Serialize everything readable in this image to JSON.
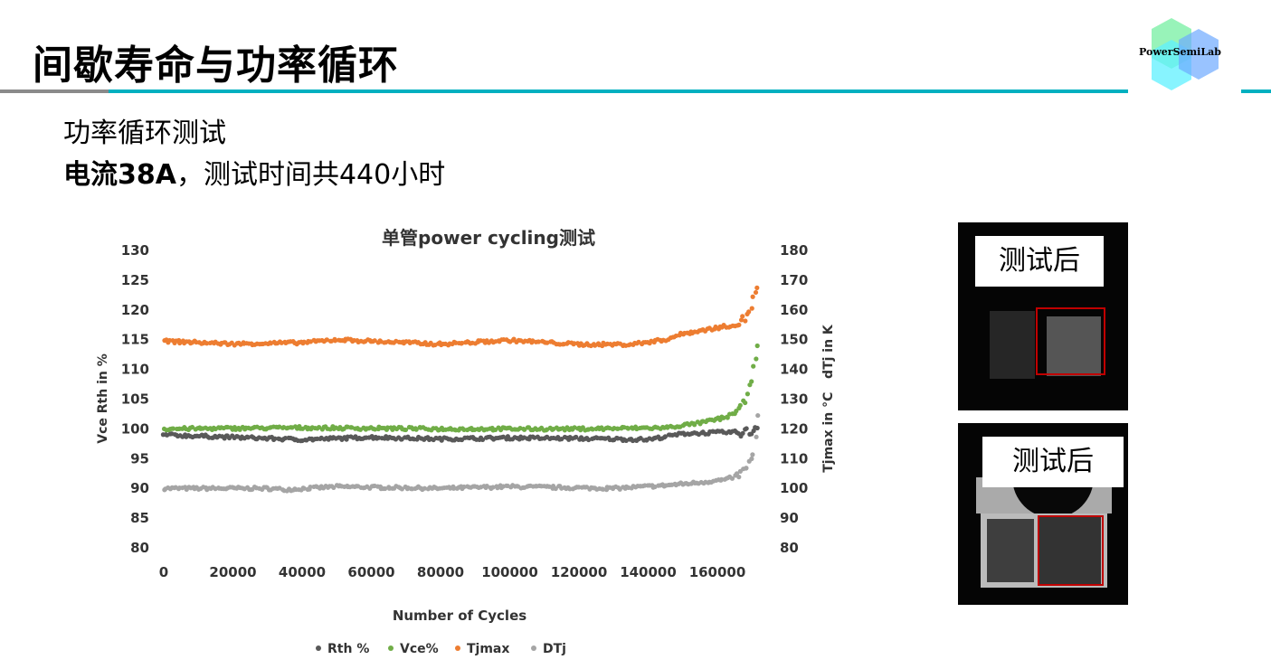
{
  "header": {
    "title": "间歇寿命与功率循环",
    "logo_text": "PowerSemiLab"
  },
  "body": {
    "line1": "功率循环测试",
    "line2_bold": "电流38A",
    "line2_rest": "，测试时间共440小时"
  },
  "photos": [
    {
      "label": "测试后"
    },
    {
      "label": "测试后"
    }
  ],
  "colors": {
    "accent": "#00b0c0",
    "Rth": "#595959",
    "Vce": "#70ad47",
    "Tjmax": "#ed7d31",
    "DTj": "#a5a5a5",
    "box": "#c00000"
  },
  "chart_data": {
    "type": "scatter",
    "title": "单管power cycling测试",
    "xlabel": "Number of Cycles",
    "ylabel_left": "Vce Rth in %",
    "ylabel_right": "Tjmax in °C   dTj in K",
    "xlim": [
      0,
      172000
    ],
    "ylim_left": [
      80,
      130
    ],
    "ylim_right": [
      80,
      180
    ],
    "x_ticks": [
      "0",
      "20000",
      "40000",
      "60000",
      "80000",
      "100000",
      "120000",
      "140000",
      "160000"
    ],
    "y_ticks_left": [
      "130",
      "125",
      "120",
      "115",
      "110",
      "105",
      "100",
      "95",
      "90",
      "85",
      "80"
    ],
    "y_ticks_right": [
      "180",
      "170",
      "160",
      "150",
      "140",
      "130",
      "120",
      "110",
      "100",
      "90",
      "80"
    ],
    "grid": false,
    "legend_position": "bottom",
    "series": [
      {
        "name": "Rth %",
        "axis": "left",
        "points": [
          [
            0,
            99
          ],
          [
            20000,
            98.6
          ],
          [
            40000,
            98.2
          ],
          [
            60000,
            98.6
          ],
          [
            80000,
            98.3
          ],
          [
            100000,
            98.5
          ],
          [
            120000,
            98.4
          ],
          [
            140000,
            98.2
          ],
          [
            150000,
            99.2
          ],
          [
            160000,
            99.4
          ],
          [
            170000,
            99.5
          ],
          [
            172000,
            101
          ]
        ]
      },
      {
        "name": "Vce%",
        "axis": "left",
        "points": [
          [
            0,
            100
          ],
          [
            40000,
            100.2
          ],
          [
            80000,
            100
          ],
          [
            120000,
            100
          ],
          [
            145000,
            100.2
          ],
          [
            155000,
            101
          ],
          [
            163000,
            102
          ],
          [
            167000,
            103.5
          ],
          [
            169000,
            106
          ],
          [
            170500,
            111
          ],
          [
            171500,
            114
          ],
          [
            172000,
            116.5
          ]
        ]
      },
      {
        "name": "Tjmax",
        "axis": "right",
        "points": [
          [
            0,
            149.5
          ],
          [
            20000,
            148.6
          ],
          [
            40000,
            149
          ],
          [
            50000,
            150
          ],
          [
            80000,
            148.5
          ],
          [
            100000,
            149.8
          ],
          [
            120000,
            148.4
          ],
          [
            135000,
            148.4
          ],
          [
            145000,
            150
          ],
          [
            150000,
            152
          ],
          [
            160000,
            154
          ],
          [
            165000,
            155
          ],
          [
            168000,
            157
          ],
          [
            170000,
            162
          ],
          [
            171500,
            167
          ],
          [
            172000,
            171
          ]
        ]
      },
      {
        "name": "DTj",
        "axis": "right",
        "points": [
          [
            0,
            100
          ],
          [
            30000,
            100
          ],
          [
            35000,
            99.6
          ],
          [
            50000,
            100.6
          ],
          [
            80000,
            100
          ],
          [
            100000,
            100.6
          ],
          [
            130000,
            100
          ],
          [
            145000,
            101
          ],
          [
            155000,
            102
          ],
          [
            163000,
            103
          ],
          [
            167000,
            105
          ],
          [
            169000,
            108
          ],
          [
            170500,
            111
          ],
          [
            172000,
            128
          ]
        ]
      }
    ]
  }
}
